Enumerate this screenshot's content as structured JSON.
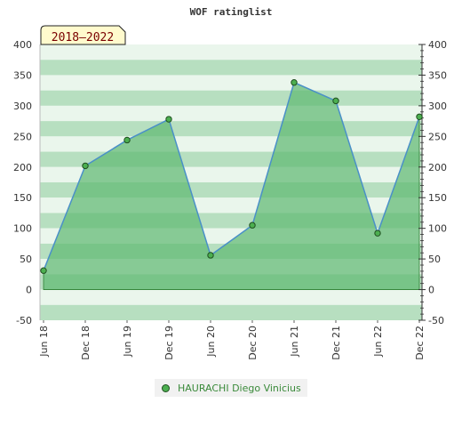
{
  "chart_data": {
    "type": "area",
    "title": "WOF ratinglist",
    "badge": "2018–2022",
    "categories": [
      "Jun 18",
      "Dec 18",
      "Jun 19",
      "Dec 19",
      "Jun 20",
      "Dec 20",
      "Jun 21",
      "Dec 21",
      "Jun 22",
      "Dec 22"
    ],
    "series": [
      {
        "name": "HAURACHI Diego Vinicius",
        "values": [
          31,
          202,
          244,
          278,
          56,
          105,
          338,
          308,
          92,
          282
        ]
      }
    ],
    "ylim": [
      -50,
      400
    ],
    "yticks": [
      -50,
      0,
      50,
      100,
      150,
      200,
      250,
      300,
      350,
      400
    ],
    "y_axis_left": true,
    "y_axis_right": true,
    "legend_position": "bottom-center",
    "colors": {
      "fill": "#5cb870",
      "line": "#4a90c8",
      "marker": "#4caf50",
      "marker_edge": "#1f4f1f",
      "band_dark": "#b7dfc0",
      "band_light": "#eaf6ec",
      "badge_bg": "#fffacd",
      "badge_text": "#7a0000"
    }
  }
}
